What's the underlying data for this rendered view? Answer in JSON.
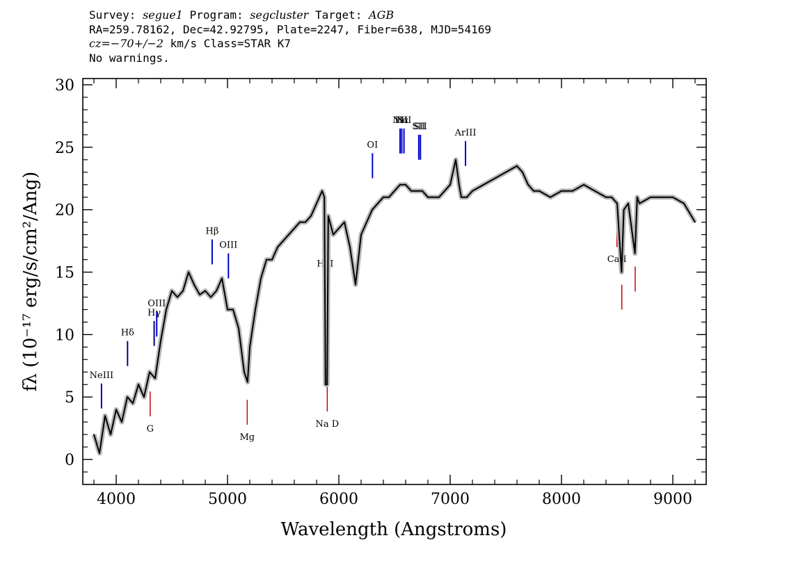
{
  "header": {
    "survey_label": "Survey: ",
    "survey": "segue1",
    "program_label": " Program: ",
    "program": "segcluster",
    "target_label": " Target: ",
    "target": "AGB",
    "line2": "RA=259.78162, Dec=42.92795, Plate=2247, Fiber=638, MJD=54169",
    "cz": "cz",
    "cz_value": "=−70+/−2",
    "line3_rest": " km/s Class=STAR K7",
    "line4": "No warnings."
  },
  "chart_data": {
    "type": "line",
    "xlabel": "Wavelength (Angstroms)",
    "ylabel": "fλ (10⁻¹⁷ erg/s/cm²/Ang)",
    "xlim": [
      3700,
      9300
    ],
    "ylim": [
      -2,
      30.5
    ],
    "xticks": [
      4000,
      5000,
      6000,
      7000,
      8000,
      9000
    ],
    "yticks": [
      0,
      5,
      10,
      15,
      20,
      25,
      30
    ],
    "grid": false,
    "series": [
      {
        "role": "spectrum",
        "color": "#000000",
        "points": [
          [
            3800,
            2
          ],
          [
            3850,
            0.5
          ],
          [
            3900,
            3.5
          ],
          [
            3950,
            2
          ],
          [
            4000,
            4
          ],
          [
            4050,
            3
          ],
          [
            4100,
            5
          ],
          [
            4150,
            4.5
          ],
          [
            4200,
            6
          ],
          [
            4250,
            5
          ],
          [
            4300,
            7
          ],
          [
            4350,
            6.5
          ],
          [
            4400,
            9.5
          ],
          [
            4450,
            12
          ],
          [
            4500,
            13.5
          ],
          [
            4550,
            13
          ],
          [
            4600,
            13.5
          ],
          [
            4650,
            15
          ],
          [
            4700,
            14
          ],
          [
            4750,
            13.2
          ],
          [
            4800,
            13.5
          ],
          [
            4850,
            13
          ],
          [
            4900,
            13.5
          ],
          [
            4950,
            14.5
          ],
          [
            5000,
            12
          ],
          [
            5050,
            12
          ],
          [
            5100,
            10.5
          ],
          [
            5150,
            7
          ],
          [
            5180,
            6.2
          ],
          [
            5200,
            9
          ],
          [
            5250,
            12
          ],
          [
            5300,
            14.5
          ],
          [
            5350,
            16
          ],
          [
            5400,
            16
          ],
          [
            5450,
            17
          ],
          [
            5500,
            17.5
          ],
          [
            5550,
            18
          ],
          [
            5600,
            18.5
          ],
          [
            5650,
            19
          ],
          [
            5700,
            19
          ],
          [
            5750,
            19.5
          ],
          [
            5800,
            20.5
          ],
          [
            5850,
            21.5
          ],
          [
            5870,
            21
          ],
          [
            5880,
            6
          ],
          [
            5895,
            6
          ],
          [
            5905,
            19.5
          ],
          [
            5950,
            18
          ],
          [
            6000,
            18.5
          ],
          [
            6050,
            19
          ],
          [
            6100,
            17
          ],
          [
            6150,
            14
          ],
          [
            6200,
            18
          ],
          [
            6250,
            19
          ],
          [
            6300,
            20
          ],
          [
            6350,
            20.5
          ],
          [
            6400,
            21
          ],
          [
            6450,
            21
          ],
          [
            6500,
            21.5
          ],
          [
            6550,
            22
          ],
          [
            6600,
            22
          ],
          [
            6650,
            21.5
          ],
          [
            6700,
            21.5
          ],
          [
            6750,
            21.5
          ],
          [
            6800,
            21
          ],
          [
            6850,
            21
          ],
          [
            6900,
            21
          ],
          [
            6950,
            21.5
          ],
          [
            7000,
            22
          ],
          [
            7050,
            24
          ],
          [
            7080,
            22
          ],
          [
            7100,
            21
          ],
          [
            7150,
            21
          ],
          [
            7200,
            21.5
          ],
          [
            7300,
            22
          ],
          [
            7400,
            22.5
          ],
          [
            7500,
            23
          ],
          [
            7600,
            23.5
          ],
          [
            7650,
            23
          ],
          [
            7700,
            22
          ],
          [
            7750,
            21.5
          ],
          [
            7800,
            21.5
          ],
          [
            7900,
            21
          ],
          [
            8000,
            21.5
          ],
          [
            8100,
            21.5
          ],
          [
            8200,
            22
          ],
          [
            8300,
            21.5
          ],
          [
            8400,
            21
          ],
          [
            8450,
            21
          ],
          [
            8500,
            20.5
          ],
          [
            8540,
            15
          ],
          [
            8560,
            20
          ],
          [
            8600,
            20.5
          ],
          [
            8660,
            16.5
          ],
          [
            8680,
            21
          ],
          [
            8700,
            20.5
          ],
          [
            8800,
            21
          ],
          [
            8900,
            21
          ],
          [
            9000,
            21
          ],
          [
            9100,
            20.5
          ],
          [
            9200,
            19
          ]
        ]
      }
    ],
    "lines": [
      {
        "label": "NeIII",
        "x": 3868,
        "kind": "emission",
        "color": "#0000cc"
      },
      {
        "label": "Hδ",
        "x": 4102,
        "kind": "emission",
        "color": "#000088"
      },
      {
        "label": "Hγ",
        "x": 4341,
        "kind": "emission",
        "color": "#000088"
      },
      {
        "label": "OIII",
        "x": 4364,
        "kind": "emission",
        "color": "#0000cc"
      },
      {
        "label": "Hβ",
        "x": 4862,
        "kind": "emission",
        "color": "#0000cc"
      },
      {
        "label": "OIII",
        "x": 5008,
        "kind": "emission",
        "color": "#0000cc"
      },
      {
        "label": "HeI",
        "x": 5877,
        "kind": "emission",
        "color": "#0000cc"
      },
      {
        "label": "OI",
        "x": 6302,
        "kind": "emission",
        "color": "#0000cc"
      },
      {
        "label": "NII",
        "x": 6550,
        "kind": "emission",
        "color": "#0000cc"
      },
      {
        "label": "Hα",
        "x": 6565,
        "kind": "emission",
        "color": "#0000cc"
      },
      {
        "label": "NII",
        "x": 6585,
        "kind": "emission",
        "color": "#0000cc"
      },
      {
        "label": "SII",
        "x": 6718,
        "kind": "emission",
        "color": "#0000cc"
      },
      {
        "label": "SII",
        "x": 6733,
        "kind": "emission",
        "color": "#0000cc"
      },
      {
        "label": "ArIII",
        "x": 7138,
        "kind": "emission",
        "color": "#0000cc"
      },
      {
        "label": "G",
        "x": 4305,
        "kind": "absorption",
        "color": "#cc0000"
      },
      {
        "label": "Mg",
        "x": 5177,
        "kind": "absorption",
        "color": "#cc0000"
      },
      {
        "label": "Na D",
        "x": 5896,
        "kind": "absorption",
        "color": "#cc0000"
      },
      {
        "label": "CaII",
        "x": 8498,
        "kind": "absorption",
        "color": "#cc0000"
      },
      {
        "label": "CaII",
        "x": 8542,
        "kind": "absorption",
        "color": "#cc0000"
      },
      {
        "label": "CaII",
        "x": 8662,
        "kind": "absorption",
        "color": "#cc0000"
      }
    ]
  }
}
